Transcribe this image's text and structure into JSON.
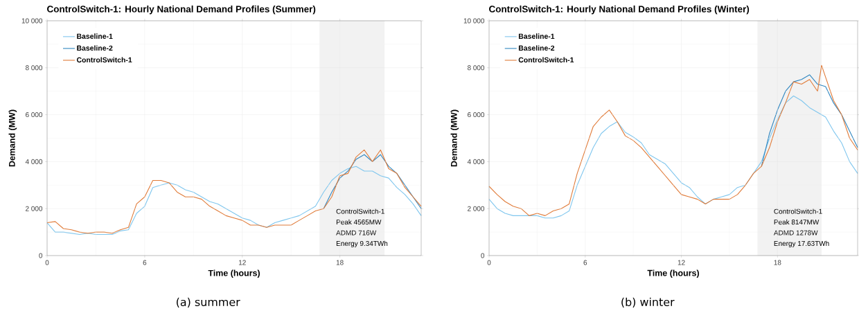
{
  "chart_data": [
    {
      "type": "line",
      "title": "ControlSwitch-1: Hourly National Demand Profiles (Summer)",
      "xlabel": "Time (hours)",
      "ylabel": "Demand (MW)",
      "x": [
        0,
        0.5,
        1,
        1.5,
        2,
        2.5,
        3,
        3.5,
        4,
        4.5,
        5,
        5.5,
        6,
        6.5,
        7,
        7.5,
        8,
        8.5,
        9,
        9.5,
        10,
        10.5,
        11,
        11.5,
        12,
        12.5,
        13,
        13.5,
        14,
        14.5,
        15,
        15.5,
        16,
        16.5,
        17,
        17.5,
        18,
        18.5,
        19,
        19.5,
        20,
        20.5,
        21,
        21.5,
        22,
        22.5,
        23
      ],
      "series": [
        {
          "name": "Baseline-1",
          "color": "#7fc6ee",
          "values": [
            1400,
            1000,
            1000,
            950,
            900,
            950,
            900,
            900,
            900,
            1050,
            1100,
            1800,
            2100,
            2900,
            3000,
            3100,
            3000,
            2800,
            2700,
            2500,
            2300,
            2200,
            2000,
            1800,
            1600,
            1500,
            1300,
            1200,
            1400,
            1500,
            1600,
            1700,
            1900,
            2100,
            2700,
            3200,
            3500,
            3700,
            3800,
            3600,
            3600,
            3400,
            3300,
            2900,
            2600,
            2200,
            1700
          ]
        },
        {
          "name": "Baseline-2",
          "color": "#2f86c0",
          "values": [
            null,
            null,
            null,
            null,
            null,
            null,
            null,
            null,
            null,
            null,
            null,
            null,
            null,
            null,
            null,
            null,
            null,
            null,
            null,
            null,
            null,
            null,
            null,
            null,
            null,
            null,
            null,
            null,
            null,
            null,
            null,
            null,
            null,
            null,
            2000,
            2700,
            3300,
            3600,
            4100,
            4300,
            4000,
            4300,
            3800,
            3500,
            3000,
            2500,
            2000
          ]
        },
        {
          "name": "ControlSwitch-1",
          "color": "#e07b39",
          "values": [
            1400,
            1450,
            1150,
            1100,
            1000,
            950,
            1000,
            1000,
            950,
            1100,
            1200,
            2200,
            2500,
            3200,
            3200,
            3100,
            2700,
            2500,
            2500,
            2400,
            2100,
            1900,
            1700,
            1600,
            1500,
            1300,
            1300,
            1200,
            1300,
            1300,
            1300,
            1500,
            1700,
            1900,
            2000,
            2500,
            3400,
            3500,
            4200,
            4500,
            4000,
            4500,
            3700,
            3500,
            2900,
            2500,
            2100
          ]
        }
      ],
      "xlim": [
        0,
        23
      ],
      "ylim": [
        0,
        10000
      ],
      "xticks": [
        0,
        6,
        12,
        18
      ],
      "yticks": [
        0,
        {
          "value": 2000,
          "label": "2 000"
        },
        {
          "value": 4000,
          "label": "4 000"
        },
        {
          "value": 6000,
          "label": "6 000"
        },
        {
          "value": 8000,
          "label": "8 000"
        },
        {
          "value": 10000,
          "label": "10 000"
        }
      ],
      "bands": [
        {
          "axis": "x",
          "from": 16.75,
          "to": 20.75,
          "color": "#f2f2f2"
        }
      ],
      "annotations": [
        "ControlSwitch-1",
        "Peak 4565MW",
        "ADMD 716W",
        "Energy 9.34TWh",
        "(a) summer"
      ],
      "grid": true,
      "legend": "top left"
    },
    {
      "type": "line",
      "title": "ControlSwitch-1: Hourly National Demand Profiles (Winter)",
      "xlabel": "Time (hours)",
      "ylabel": "Demand (MW)",
      "x": [
        0,
        0.5,
        1,
        1.5,
        2,
        2.5,
        3,
        3.5,
        4,
        4.5,
        5,
        5.5,
        6,
        6.5,
        7,
        7.5,
        8,
        8.5,
        9,
        9.5,
        10,
        10.5,
        11,
        11.5,
        12,
        12.5,
        13,
        13.5,
        14,
        14.5,
        15,
        15.5,
        16,
        16.5,
        17,
        17.5,
        18,
        18.5,
        19,
        19.5,
        20,
        20.5,
        21,
        21.5,
        22,
        22.5,
        23
      ],
      "series": [
        {
          "name": "Baseline-1",
          "color": "#7fc6ee",
          "values": [
            2400,
            2000,
            1800,
            1700,
            1700,
            1700,
            1700,
            1600,
            1600,
            1700,
            1900,
            3000,
            3800,
            4600,
            5200,
            5500,
            5700,
            5250,
            5050,
            4800,
            4300,
            4100,
            3900,
            3500,
            3100,
            2900,
            2500,
            2200,
            2400,
            2500,
            2600,
            2900,
            3000,
            3500,
            4000,
            5000,
            5800,
            6500,
            6800,
            6600,
            6300,
            6100,
            5900,
            5300,
            4800,
            4000,
            3500
          ]
        },
        {
          "name": "Baseline-2",
          "color": "#2f86c0",
          "values": [
            null,
            null,
            null,
            null,
            null,
            null,
            null,
            null,
            null,
            null,
            null,
            null,
            null,
            null,
            null,
            null,
            null,
            null,
            null,
            null,
            null,
            null,
            null,
            null,
            null,
            null,
            null,
            null,
            null,
            null,
            null,
            null,
            null,
            null,
            3800,
            5200,
            6200,
            7000,
            7400,
            7500,
            7700,
            7300,
            7200,
            6500,
            6000,
            5300,
            4600
          ]
        },
        {
          "name": "ControlSwitch-1",
          "color": "#e07b39",
          "x": [
            0,
            0.5,
            1,
            1.5,
            2,
            2.5,
            3,
            3.5,
            4,
            4.5,
            5,
            5.5,
            6,
            6.5,
            7,
            7.5,
            8,
            8.5,
            9,
            9.5,
            10,
            10.5,
            11,
            11.5,
            12,
            12.5,
            13,
            13.5,
            14,
            14.5,
            15,
            15.5,
            16,
            16.5,
            17,
            17.5,
            18,
            18.5,
            19,
            19.5,
            20,
            20.5,
            20.75,
            21,
            21.5,
            22,
            22.5,
            23
          ],
          "values": [
            2950,
            2600,
            2300,
            2100,
            2000,
            1700,
            1800,
            1700,
            1900,
            2000,
            2200,
            3500,
            4500,
            5500,
            5900,
            6200,
            5700,
            5100,
            4900,
            4600,
            4200,
            3800,
            3400,
            3000,
            2600,
            2500,
            2400,
            2200,
            2400,
            2400,
            2400,
            2600,
            3000,
            3500,
            3800,
            4600,
            5700,
            6500,
            7400,
            7300,
            7500,
            7000,
            8100,
            7600,
            6600,
            6000,
            5000,
            4500
          ]
        }
      ],
      "xlim": [
        0,
        23
      ],
      "ylim": [
        0,
        10000
      ],
      "xticks": [
        0,
        6,
        12,
        18
      ],
      "yticks": [
        0,
        {
          "value": 2000,
          "label": "2 000"
        },
        {
          "value": 4000,
          "label": "4 000"
        },
        {
          "value": 6000,
          "label": "6 000"
        },
        {
          "value": 8000,
          "label": "8 000"
        },
        {
          "value": 10000,
          "label": "10 000"
        }
      ],
      "bands": [
        {
          "axis": "x",
          "from": 16.75,
          "to": 20.75,
          "color": "#f2f2f2"
        }
      ],
      "annotations": [
        "ControlSwitch-1",
        "Peak 8147MW",
        "ADMD 1278W",
        "Energy 17.63TWh",
        "(b) winter"
      ],
      "grid": true,
      "legend": "top left"
    }
  ]
}
